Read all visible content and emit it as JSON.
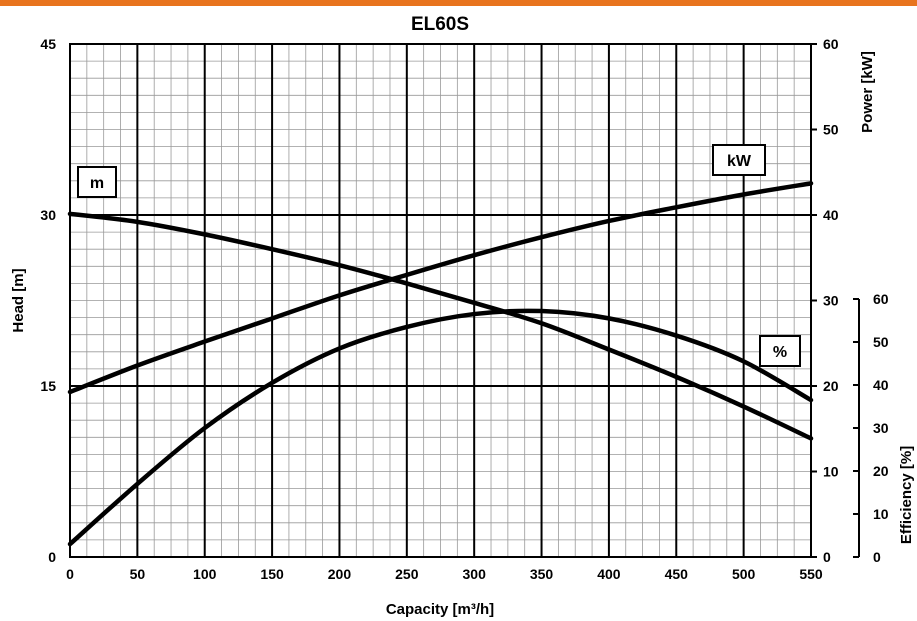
{
  "colors": {
    "accent": "#e8741e",
    "ink": "#000000"
  },
  "chart_data": {
    "type": "line",
    "title": "EL60S",
    "xlabel": "Capacity [m³/h]",
    "xlim": [
      0,
      550
    ],
    "xticks": [
      0,
      50,
      100,
      150,
      200,
      250,
      300,
      350,
      400,
      450,
      500,
      550
    ],
    "grid": true,
    "axes": {
      "head": {
        "label": "Head [m]",
        "ylim": [
          0,
          45
        ],
        "ticks": [
          0,
          15,
          30,
          45
        ],
        "side": "left"
      },
      "power": {
        "label": "Power [kW]",
        "ylim": [
          0,
          60
        ],
        "ticks": [
          0,
          10,
          20,
          30,
          40,
          50,
          60
        ],
        "side": "right"
      },
      "efficiency": {
        "label": "Efficiency [%]",
        "ylim": [
          0,
          60
        ],
        "ticks": [
          0,
          10,
          20,
          30,
          40,
          50,
          60
        ],
        "side": "right-lower"
      }
    },
    "series": [
      {
        "name": "m",
        "axis": "head",
        "x": [
          0,
          50,
          100,
          150,
          200,
          250,
          300,
          350,
          400,
          450,
          500,
          550
        ],
        "values": [
          30.1,
          29.4,
          28.3,
          27.0,
          25.6,
          24.0,
          22.3,
          20.5,
          18.2,
          15.8,
          13.2,
          10.4
        ]
      },
      {
        "name": "kW",
        "axis": "power",
        "x": [
          0,
          50,
          100,
          150,
          200,
          250,
          300,
          350,
          400,
          450,
          500,
          550
        ],
        "values": [
          19.3,
          22.4,
          25.2,
          27.9,
          30.6,
          33.0,
          35.3,
          37.4,
          39.3,
          40.9,
          42.4,
          43.7
        ]
      },
      {
        "name": "%",
        "axis": "efficiency",
        "x": [
          0,
          50,
          100,
          150,
          200,
          250,
          300,
          350,
          400,
          450,
          500,
          550
        ],
        "values": [
          3,
          17,
          30,
          40.5,
          48.5,
          53.5,
          56.5,
          57.2,
          55.5,
          51.5,
          45.5,
          36.5
        ]
      }
    ]
  }
}
